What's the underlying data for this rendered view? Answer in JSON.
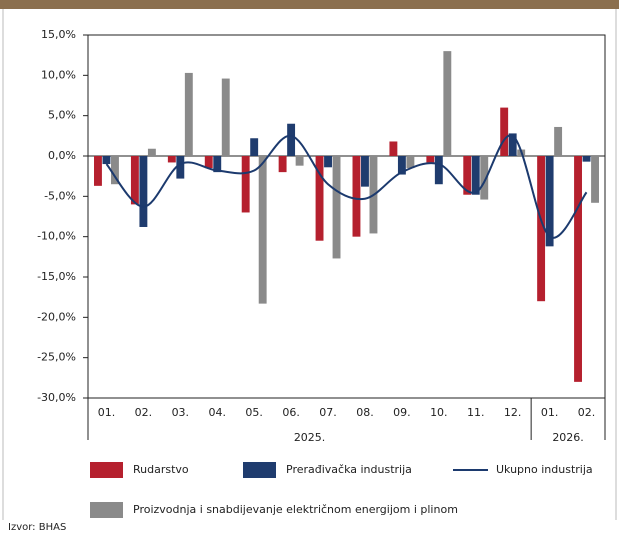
{
  "chart_data": {
    "type": "bar",
    "categories": [
      "01.",
      "02.",
      "03.",
      "04.",
      "05.",
      "06.",
      "07.",
      "08.",
      "09.",
      "10.",
      "11.",
      "12.",
      "01.",
      "02."
    ],
    "groups": [
      {
        "label": "2025.",
        "count": 12
      },
      {
        "label": "2026.",
        "count": 2
      }
    ],
    "series": [
      {
        "name": "Rudarstvo",
        "color": "#b5202e",
        "values": [
          -3.7,
          -6.0,
          -0.8,
          -1.5,
          -7.0,
          -2.0,
          -10.5,
          -10.0,
          1.8,
          -0.8,
          -4.8,
          6.0,
          -18.0,
          -28.0
        ]
      },
      {
        "name": "Prerađivačka industrija",
        "color": "#1f3c6e",
        "values": [
          -1.0,
          -8.8,
          -2.8,
          -2.0,
          2.2,
          4.0,
          -1.4,
          -3.8,
          -2.3,
          -3.5,
          -4.8,
          2.8,
          -11.2,
          -0.7
        ]
      },
      {
        "name": "Ukupno industrija",
        "color": "#1c3a6e",
        "kind": "line",
        "values": [
          -1.0,
          -6.3,
          -1.0,
          -1.8,
          -1.8,
          2.5,
          -3.5,
          -5.3,
          -2.0,
          -1.0,
          -4.5,
          2.5,
          -10.0,
          -4.5
        ]
      },
      {
        "name": "Proizvodnja i snabdijevanje električnom energijom i plinom",
        "color": "#8a8a8a",
        "values": [
          -3.5,
          0.9,
          10.3,
          9.6,
          -18.3,
          -1.2,
          -12.7,
          -9.6,
          -1.5,
          13.0,
          -5.4,
          0.8,
          3.6,
          -5.8
        ]
      }
    ],
    "ylim": [
      -30,
      15
    ],
    "yticks": [
      {
        "value": -30,
        "label": "-30,0%"
      },
      {
        "value": -25,
        "label": "-25,0%"
      },
      {
        "value": -20,
        "label": "-20,0%"
      },
      {
        "value": -15,
        "label": "-15,0%"
      },
      {
        "value": -10,
        "label": "-10,0%"
      },
      {
        "value": -5,
        "label": "-5,0%"
      },
      {
        "value": 0,
        "label": "0,0%"
      },
      {
        "value": 5,
        "label": "5,0%"
      },
      {
        "value": 10,
        "label": "10,0%"
      },
      {
        "value": 15,
        "label": "15,0%"
      }
    ],
    "source": "Izvor: BHAS"
  }
}
